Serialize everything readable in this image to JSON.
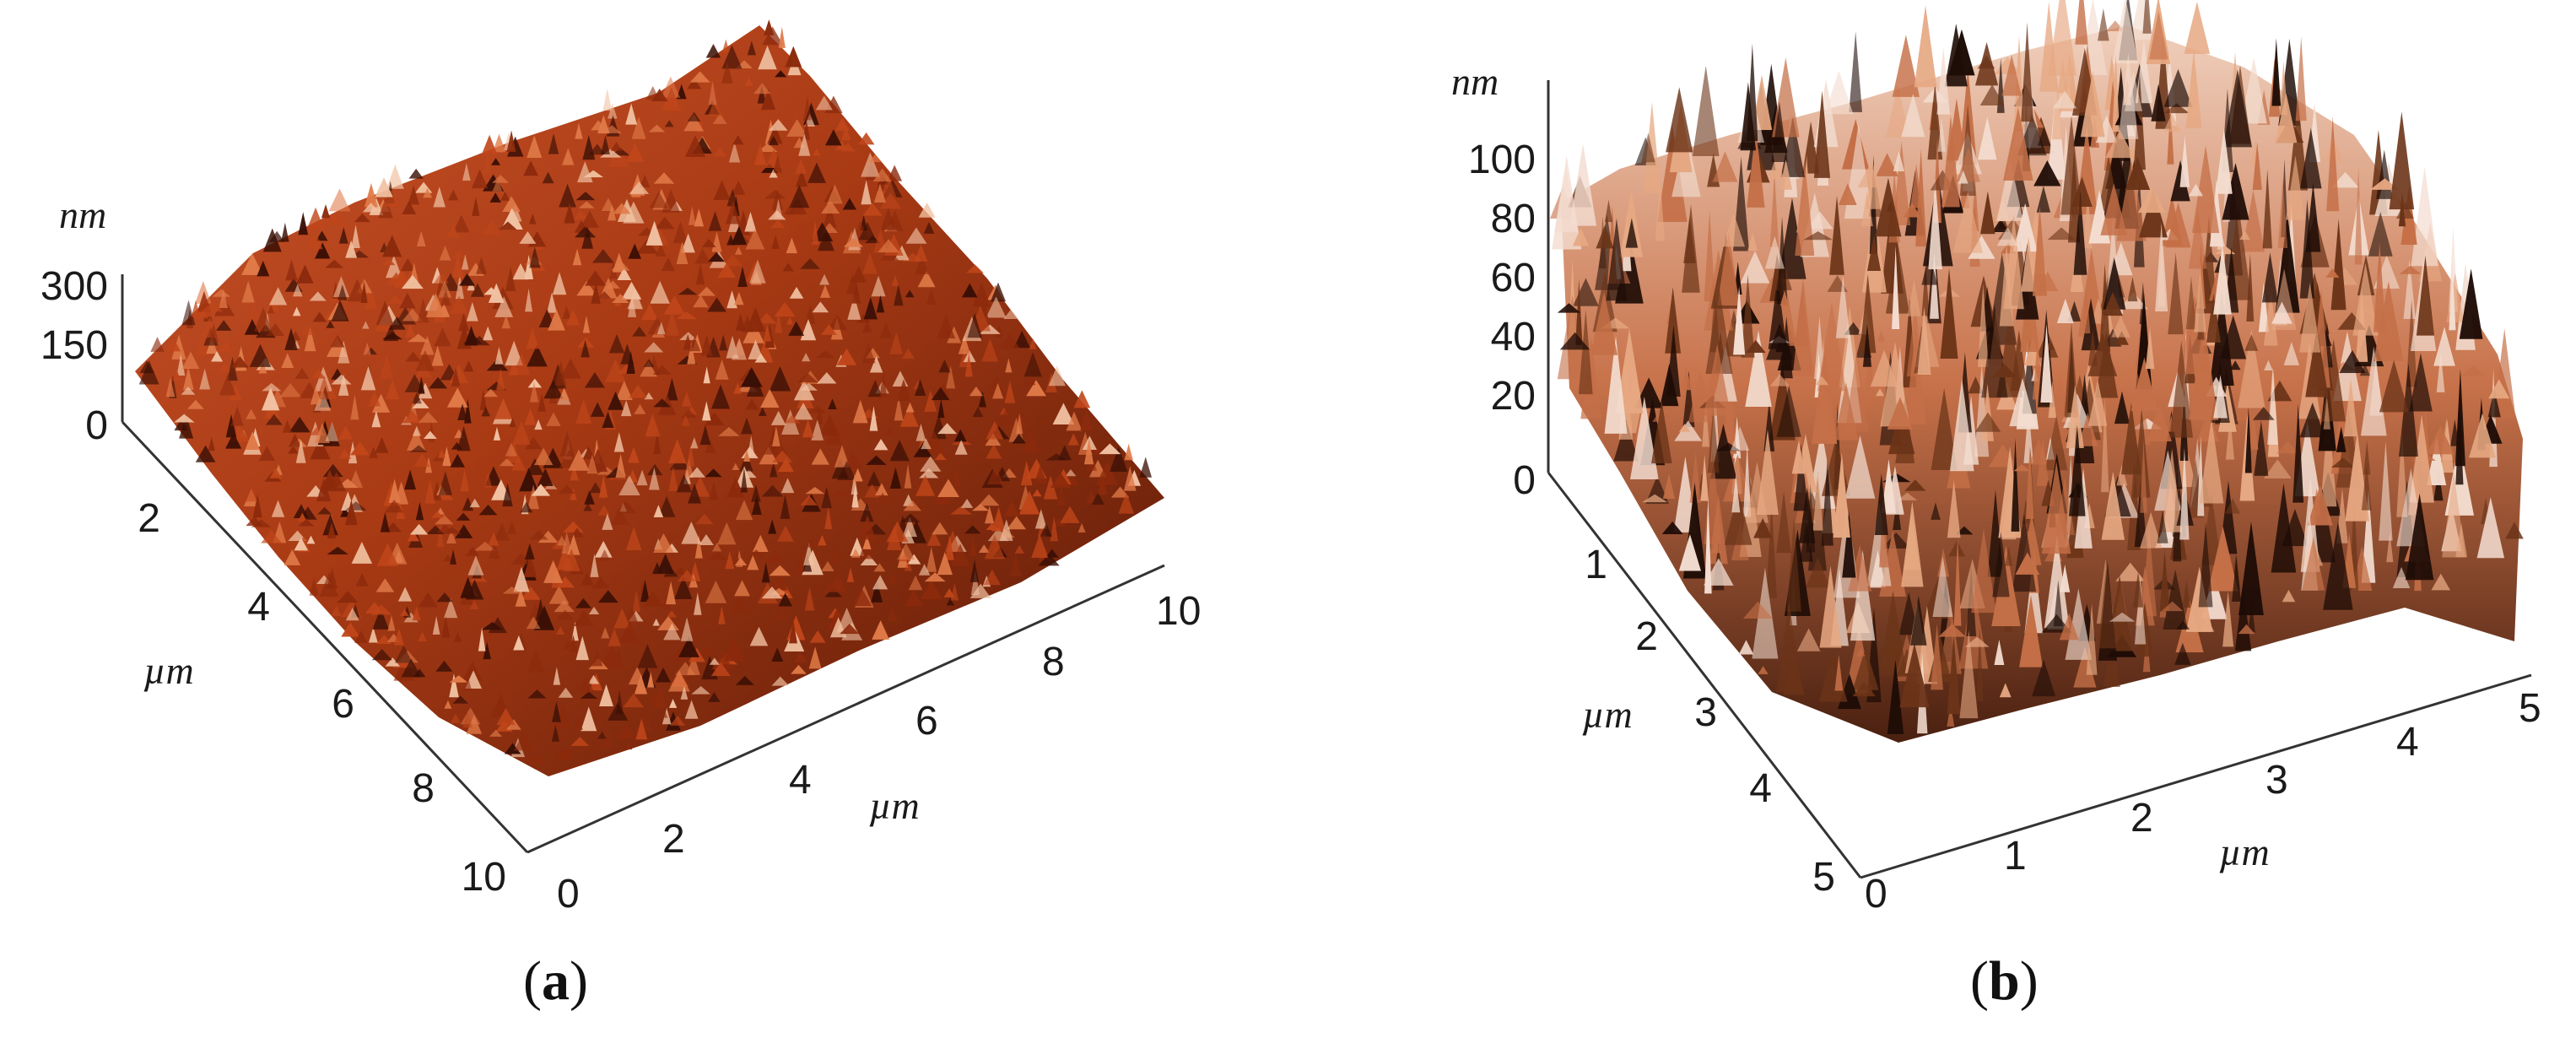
{
  "panels": [
    {
      "caption_letter": "a",
      "z_unit": "nm",
      "z_ticks": [
        "300",
        "150",
        "0"
      ],
      "left_axis_unit": "µm",
      "left_axis_ticks": [
        "2",
        "4",
        "6",
        "8",
        "10"
      ],
      "bottom_axis_unit": "µm",
      "bottom_axis_ticks": [
        "0",
        "2",
        "4",
        "6",
        "8",
        "10"
      ],
      "surface_colors": [
        "#3a0f05",
        "#8c2a0c",
        "#c0461a",
        "#e07a48",
        "#f1c2a2"
      ]
    },
    {
      "caption_letter": "b",
      "z_unit": "nm",
      "z_ticks": [
        "100",
        "80",
        "60",
        "40",
        "20",
        "0"
      ],
      "left_axis_unit": "µm",
      "left_axis_ticks": [
        "1",
        "2",
        "3",
        "4",
        "5"
      ],
      "bottom_axis_unit": "µm",
      "bottom_axis_ticks": [
        "0",
        "1",
        "2",
        "3",
        "4",
        "5"
      ],
      "surface_colors": [
        "#1e0c06",
        "#6b3418",
        "#c46f47",
        "#e6a882",
        "#f3ddd0"
      ]
    }
  ]
}
